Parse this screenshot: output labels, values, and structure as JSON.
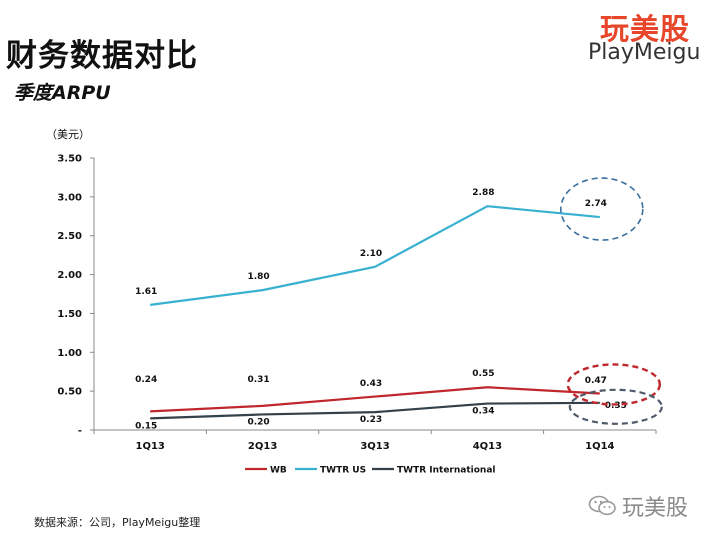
{
  "header": {
    "title": "财务数据对比",
    "subtitle": "季度ARPU"
  },
  "logo": {
    "cn": "玩美股",
    "en": "PlayMeigu"
  },
  "footer": {
    "source": "数据来源：公司，PlayMeigu整理"
  },
  "watermark": {
    "text": "玩美股",
    "icon": "wechat-icon"
  },
  "chart_data": {
    "type": "line",
    "unit_label": "（美元）",
    "categories": [
      "1Q13",
      "2Q13",
      "3Q13",
      "4Q13",
      "1Q14"
    ],
    "ylim": [
      0,
      3.5
    ],
    "yticks": [
      "-",
      "0.50",
      "1.00",
      "1.50",
      "2.00",
      "2.50",
      "3.00",
      "3.50"
    ],
    "series": [
      {
        "name": "WB",
        "color": "#c0272d",
        "values": [
          0.24,
          0.31,
          0.43,
          0.55,
          0.47
        ],
        "labels": [
          "0.24",
          "0.31",
          "0.43",
          "0.55",
          "0.47"
        ]
      },
      {
        "name": "TWTR US",
        "color": "#38b0d0",
        "values": [
          1.61,
          1.8,
          2.1,
          2.88,
          2.74
        ],
        "labels": [
          "1.61",
          "1.80",
          "2.10",
          "2.88",
          "2.74"
        ]
      },
      {
        "name": "TWTR International",
        "color": "#34404a",
        "values": [
          0.15,
          0.2,
          0.23,
          0.34,
          0.35
        ],
        "labels": [
          "0.15",
          "0.20",
          "0.23",
          "0.34",
          "0.35"
        ]
      }
    ],
    "highlights": [
      {
        "series": "TWTR US",
        "index": 4,
        "color": "#3a6f9e"
      },
      {
        "series": "WB",
        "index": 4,
        "color": "#c0272d"
      },
      {
        "series": "TWTR International",
        "index": 4,
        "color": "#4f5a6a"
      }
    ],
    "grid": false,
    "legend": "bottom"
  }
}
